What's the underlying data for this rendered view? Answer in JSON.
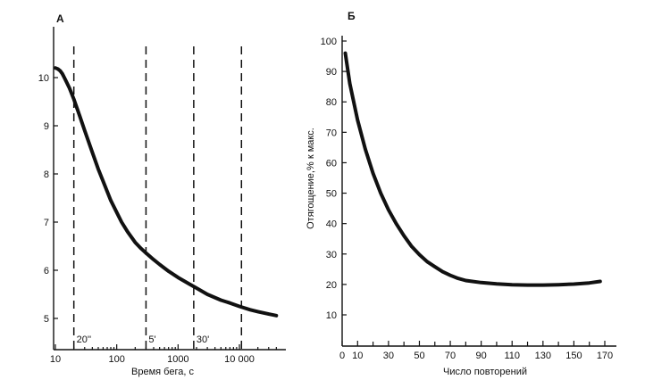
{
  "chart_data": [
    {
      "panel_label": "А",
      "type": "line",
      "x_scale": "log",
      "xlabel": "Время бега, с",
      "ylabel": "",
      "xlim": [
        10,
        45000
      ],
      "ylim": [
        4.6,
        10.6
      ],
      "grid": false,
      "x_ticks": [
        {
          "value": 10,
          "label": "10"
        },
        {
          "value": 100,
          "label": "100"
        },
        {
          "value": 1000,
          "label": "1000"
        },
        {
          "value": 10000,
          "label": "10 000"
        }
      ],
      "y_ticks": [
        {
          "value": 5,
          "label": "5"
        },
        {
          "value": 6,
          "label": "6"
        },
        {
          "value": 7,
          "label": "7"
        },
        {
          "value": 8,
          "label": "8"
        },
        {
          "value": 9,
          "label": "9"
        },
        {
          "value": 10,
          "label": "10"
        }
      ],
      "series": [
        {
          "x": [
            10,
            11,
            12,
            13,
            14,
            15,
            17,
            20,
            25,
            30,
            40,
            50,
            60,
            80,
            100,
            120,
            150,
            200,
            250,
            300,
            400,
            500,
            700,
            1000,
            1500,
            2000,
            3000,
            5000,
            7000,
            10000,
            15000,
            20000,
            30000,
            40000
          ],
          "y": [
            10.2,
            10.18,
            10.14,
            10.08,
            10.0,
            9.92,
            9.78,
            9.55,
            9.2,
            8.9,
            8.45,
            8.1,
            7.85,
            7.45,
            7.2,
            7.0,
            6.8,
            6.58,
            6.45,
            6.36,
            6.22,
            6.12,
            5.98,
            5.85,
            5.72,
            5.63,
            5.5,
            5.38,
            5.32,
            5.25,
            5.18,
            5.14,
            5.09,
            5.06
          ]
        }
      ],
      "reference_lines": [
        {
          "x": 20,
          "label": "20''"
        },
        {
          "x": 300,
          "label": "5'"
        },
        {
          "x": 1800,
          "label": "30'"
        },
        {
          "x": 10800,
          "label": ""
        }
      ]
    },
    {
      "panel_label": "Б",
      "type": "line",
      "xlabel": "Число повторений",
      "ylabel": "Отягощение,% к макс.",
      "xlim": [
        0,
        175
      ],
      "ylim": [
        0,
        100
      ],
      "grid": false,
      "x_ticks": [
        {
          "value": 0,
          "label": "0"
        },
        {
          "value": 10,
          "label": "10"
        },
        {
          "value": 30,
          "label": "30"
        },
        {
          "value": 50,
          "label": "50"
        },
        {
          "value": 70,
          "label": "70"
        },
        {
          "value": 90,
          "label": "90"
        },
        {
          "value": 110,
          "label": "110"
        },
        {
          "value": 130,
          "label": "130"
        },
        {
          "value": 150,
          "label": "150"
        },
        {
          "value": 170,
          "label": "170"
        }
      ],
      "minor_x_ticks": [
        20,
        40,
        60,
        80,
        100,
        120,
        140,
        160
      ],
      "y_ticks": [
        {
          "value": 10,
          "label": "10"
        },
        {
          "value": 20,
          "label": "20"
        },
        {
          "value": 30,
          "label": "30"
        },
        {
          "value": 40,
          "label": "40"
        },
        {
          "value": 50,
          "label": "50"
        },
        {
          "value": 60,
          "label": "60"
        },
        {
          "value": 70,
          "label": "70"
        },
        {
          "value": 80,
          "label": "80"
        },
        {
          "value": 90,
          "label": "90"
        },
        {
          "value": 100,
          "label": "100"
        }
      ],
      "series": [
        {
          "x": [
            2,
            5,
            10,
            15,
            20,
            25,
            30,
            35,
            40,
            45,
            50,
            55,
            60,
            65,
            70,
            75,
            80,
            90,
            100,
            110,
            120,
            130,
            140,
            150,
            160,
            167
          ],
          "y": [
            96,
            86,
            74,
            64.5,
            56.5,
            50,
            44.5,
            40,
            36,
            32.5,
            29.8,
            27.5,
            25.8,
            24.2,
            23,
            22,
            21.3,
            20.6,
            20.2,
            19.9,
            19.8,
            19.8,
            19.9,
            20.1,
            20.5,
            21
          ]
        }
      ]
    }
  ]
}
